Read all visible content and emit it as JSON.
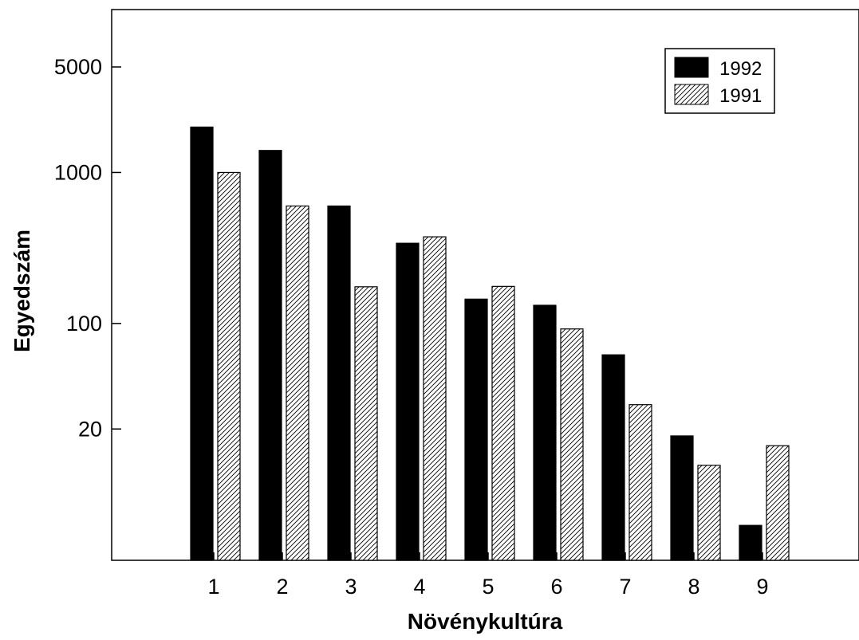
{
  "chart_data": {
    "type": "bar",
    "title": "",
    "xlabel": "Növénykultúra",
    "ylabel": "Egyedszám",
    "y_scale": "log",
    "ylim": [
      2.7,
      12000
    ],
    "categories": [
      "1",
      "2",
      "3",
      "4",
      "5",
      "6",
      "7",
      "8",
      "9"
    ],
    "y_ticks": [
      {
        "value": 20,
        "label": "20"
      },
      {
        "value": 100,
        "label": "100"
      },
      {
        "value": 1000,
        "label": "1000"
      },
      {
        "value": 5000,
        "label": "5000"
      }
    ],
    "series": [
      {
        "name": "1992",
        "fill": "solid",
        "color": "#000000",
        "values": [
          2000,
          1400,
          600,
          340,
          145,
          132,
          62,
          18,
          4.6
        ]
      },
      {
        "name": "1991",
        "fill": "hatched",
        "color": "#000000",
        "values": [
          1000,
          600,
          175,
          375,
          176,
          92,
          29,
          11.5,
          15.5
        ]
      }
    ],
    "legend_position": "top-right",
    "grid": false
  }
}
